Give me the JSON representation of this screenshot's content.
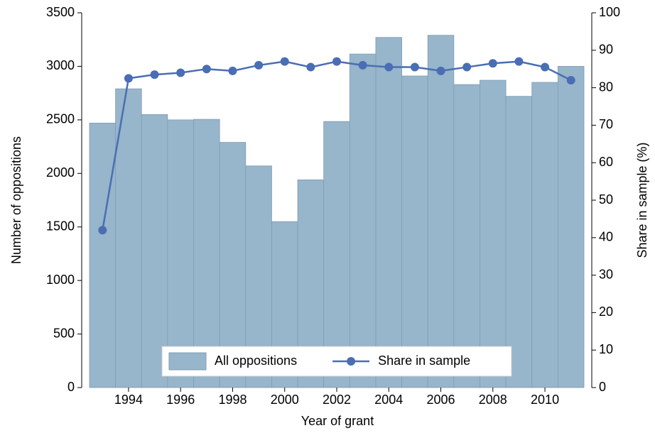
{
  "chart_data": {
    "type": "bar-line",
    "x_label": "Year of grant",
    "y_label": "Number of oppositions",
    "y2_label": "Share in sample (%)",
    "x": [
      1993,
      1994,
      1995,
      1996,
      1997,
      1998,
      1999,
      2000,
      2001,
      2002,
      2003,
      2004,
      2005,
      2006,
      2007,
      2008,
      2009,
      2010,
      2011
    ],
    "series": [
      {
        "name": "All oppositions",
        "type": "bar",
        "color": "#97b5cb",
        "values": [
          2470,
          2790,
          2550,
          2500,
          2505,
          2290,
          2070,
          1550,
          1940,
          2485,
          3115,
          3270,
          2910,
          3290,
          2830,
          2870,
          2720,
          2850,
          3000
        ]
      },
      {
        "name": "Share in sample",
        "type": "line",
        "axis": "y2",
        "color": "#4a6eb3",
        "values": [
          42,
          82.5,
          83.5,
          84,
          85,
          84.5,
          86,
          87,
          85.5,
          87,
          86,
          85.5,
          85.5,
          84.5,
          85.5,
          86.5,
          87,
          85.5,
          82
        ]
      }
    ],
    "xlim": [
      1992.2,
      2011.8
    ],
    "xticks": [
      1994,
      1996,
      1998,
      2000,
      2002,
      2004,
      2006,
      2008,
      2010
    ],
    "ylim": [
      0,
      3500
    ],
    "yticks": [
      0,
      500,
      1000,
      1500,
      2000,
      2500,
      3000,
      3500
    ],
    "y2lim": [
      0,
      100
    ],
    "y2ticks": [
      0,
      10,
      20,
      30,
      40,
      50,
      60,
      70,
      80,
      90,
      100
    ],
    "grid": false,
    "legend": "bottom"
  }
}
